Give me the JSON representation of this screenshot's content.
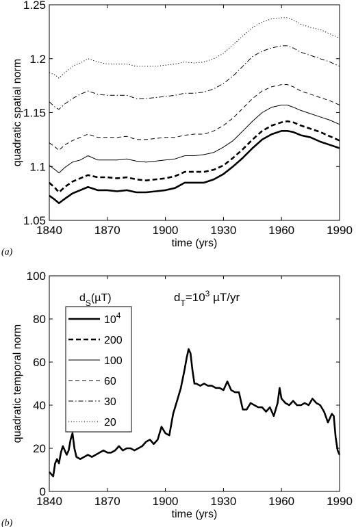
{
  "chart_data": [
    {
      "type": "line",
      "panel_label": "(a)",
      "xlabel": "time (yrs)",
      "ylabel": "quadratic spatial norm",
      "xlim": [
        1840,
        1990
      ],
      "ylim": [
        1.05,
        1.25
      ],
      "xticks": [
        "1840",
        "1870",
        "1900",
        "1930",
        "1960",
        "1990"
      ],
      "yticks": [
        "1.05",
        "1.1",
        "1.15",
        "1.2",
        "1.25"
      ],
      "grid": false,
      "x": [
        1840,
        1843,
        1845,
        1848,
        1852,
        1856,
        1860,
        1865,
        1870,
        1875,
        1880,
        1885,
        1890,
        1895,
        1900,
        1905,
        1910,
        1915,
        1920,
        1925,
        1930,
        1935,
        1940,
        1945,
        1950,
        1955,
        1960,
        1963,
        1966,
        1970,
        1975,
        1980,
        1985,
        1990
      ],
      "series": [
        {
          "name": "10^4",
          "style": "solid-thick",
          "values": [
            1.073,
            1.069,
            1.066,
            1.07,
            1.075,
            1.078,
            1.081,
            1.078,
            1.078,
            1.077,
            1.078,
            1.076,
            1.076,
            1.077,
            1.078,
            1.08,
            1.085,
            1.085,
            1.085,
            1.088,
            1.093,
            1.1,
            1.108,
            1.117,
            1.125,
            1.13,
            1.133,
            1.133,
            1.132,
            1.129,
            1.127,
            1.123,
            1.12,
            1.117
          ]
        },
        {
          "name": "200",
          "style": "dashed-thick",
          "values": [
            1.085,
            1.08,
            1.076,
            1.081,
            1.086,
            1.089,
            1.092,
            1.09,
            1.09,
            1.089,
            1.09,
            1.088,
            1.087,
            1.088,
            1.089,
            1.091,
            1.095,
            1.095,
            1.095,
            1.097,
            1.101,
            1.108,
            1.116,
            1.125,
            1.133,
            1.138,
            1.141,
            1.142,
            1.141,
            1.138,
            1.135,
            1.132,
            1.128,
            1.124
          ]
        },
        {
          "name": "100",
          "style": "solid-thin",
          "values": [
            1.101,
            1.097,
            1.094,
            1.099,
            1.104,
            1.106,
            1.11,
            1.106,
            1.106,
            1.106,
            1.107,
            1.105,
            1.104,
            1.105,
            1.106,
            1.107,
            1.11,
            1.11,
            1.111,
            1.113,
            1.118,
            1.124,
            1.133,
            1.142,
            1.15,
            1.155,
            1.157,
            1.157,
            1.155,
            1.152,
            1.149,
            1.146,
            1.143,
            1.139
          ]
        },
        {
          "name": "60",
          "style": "dashed-thin",
          "values": [
            1.122,
            1.118,
            1.115,
            1.12,
            1.124,
            1.127,
            1.13,
            1.127,
            1.127,
            1.127,
            1.128,
            1.125,
            1.125,
            1.126,
            1.127,
            1.127,
            1.129,
            1.13,
            1.13,
            1.133,
            1.138,
            1.145,
            1.154,
            1.163,
            1.17,
            1.174,
            1.176,
            1.176,
            1.174,
            1.17,
            1.167,
            1.164,
            1.161,
            1.157
          ]
        },
        {
          "name": "30",
          "style": "dashdot",
          "values": [
            1.16,
            1.155,
            1.153,
            1.158,
            1.163,
            1.167,
            1.17,
            1.167,
            1.166,
            1.166,
            1.166,
            1.163,
            1.163,
            1.164,
            1.165,
            1.166,
            1.168,
            1.168,
            1.169,
            1.172,
            1.177,
            1.184,
            1.193,
            1.202,
            1.207,
            1.21,
            1.212,
            1.212,
            1.21,
            1.206,
            1.203,
            1.2,
            1.197,
            1.193
          ]
        },
        {
          "name": "20",
          "style": "dotted",
          "values": [
            1.187,
            1.185,
            1.182,
            1.187,
            1.193,
            1.196,
            1.2,
            1.197,
            1.195,
            1.195,
            1.195,
            1.193,
            1.193,
            1.193,
            1.194,
            1.195,
            1.197,
            1.196,
            1.197,
            1.2,
            1.205,
            1.213,
            1.221,
            1.229,
            1.234,
            1.237,
            1.238,
            1.238,
            1.236,
            1.232,
            1.229,
            1.227,
            1.223,
            1.219
          ]
        }
      ]
    },
    {
      "type": "line",
      "panel_label": "(b)",
      "xlabel": "time (yrs)",
      "ylabel": "quadratic temporal norm",
      "xlim": [
        1840,
        1990
      ],
      "ylim": [
        0,
        100
      ],
      "xticks": [
        "1840",
        "1870",
        "1900",
        "1930",
        "1960",
        "1990"
      ],
      "yticks": [
        "0",
        "20",
        "40",
        "60",
        "80",
        "100"
      ],
      "grid": false,
      "annotation": {
        "base": "d",
        "sub": "T",
        "rest": "=10",
        "sup": "3",
        "unit": " µT/yr"
      },
      "legend": {
        "title": {
          "base": "d",
          "sub": "S",
          "unit": "(µT)"
        },
        "placement": "top-left",
        "entries": [
          {
            "base": "10",
            "sup": "4",
            "style": "solid-thick"
          },
          {
            "base": "200",
            "sup": "",
            "style": "dashed-thick"
          },
          {
            "base": "100",
            "sup": "",
            "style": "solid-thin"
          },
          {
            "base": "60",
            "sup": "",
            "style": "dashed-thin"
          },
          {
            "base": "30",
            "sup": "",
            "style": "dashdot"
          },
          {
            "base": "20",
            "sup": "",
            "style": "dotted"
          }
        ]
      },
      "x": [
        1840,
        1842,
        1843,
        1844,
        1845,
        1846,
        1847,
        1848,
        1849,
        1850,
        1851,
        1852,
        1853,
        1854,
        1856,
        1858,
        1860,
        1862,
        1864,
        1866,
        1868,
        1870,
        1872,
        1874,
        1876,
        1878,
        1880,
        1882,
        1884,
        1886,
        1888,
        1890,
        1892,
        1894,
        1896,
        1898,
        1900,
        1902,
        1904,
        1906,
        1908,
        1910,
        1911,
        1912,
        1913,
        1914,
        1915,
        1916,
        1918,
        1920,
        1922,
        1924,
        1926,
        1928,
        1930,
        1932,
        1934,
        1936,
        1938,
        1940,
        1942,
        1944,
        1946,
        1948,
        1950,
        1952,
        1954,
        1956,
        1957,
        1958,
        1959,
        1960,
        1962,
        1964,
        1966,
        1968,
        1970,
        1972,
        1974,
        1976,
        1978,
        1980,
        1982,
        1984,
        1985,
        1986,
        1987,
        1988,
        1989,
        1990
      ],
      "series": [
        {
          "name": "10^4",
          "values": [
            9,
            7,
            13,
            15,
            13,
            18,
            21,
            19,
            17,
            19,
            24,
            27,
            20,
            16,
            15,
            16,
            17,
            16,
            17,
            18,
            19,
            18,
            18,
            19,
            21,
            19,
            20,
            20,
            19,
            20,
            21,
            23,
            24,
            22,
            24,
            30,
            27,
            26,
            36,
            42,
            48,
            57,
            62,
            66,
            64,
            56,
            50,
            50,
            49,
            50,
            49,
            49,
            48,
            48,
            47,
            51,
            47,
            46,
            46,
            38,
            38,
            41,
            40,
            39,
            39,
            37,
            39,
            35,
            38,
            41,
            48,
            43,
            41,
            40,
            42,
            40,
            40,
            41,
            40,
            43,
            41,
            40,
            37,
            32,
            34,
            36,
            35,
            25,
            19,
            17
          ]
        }
      ]
    }
  ]
}
